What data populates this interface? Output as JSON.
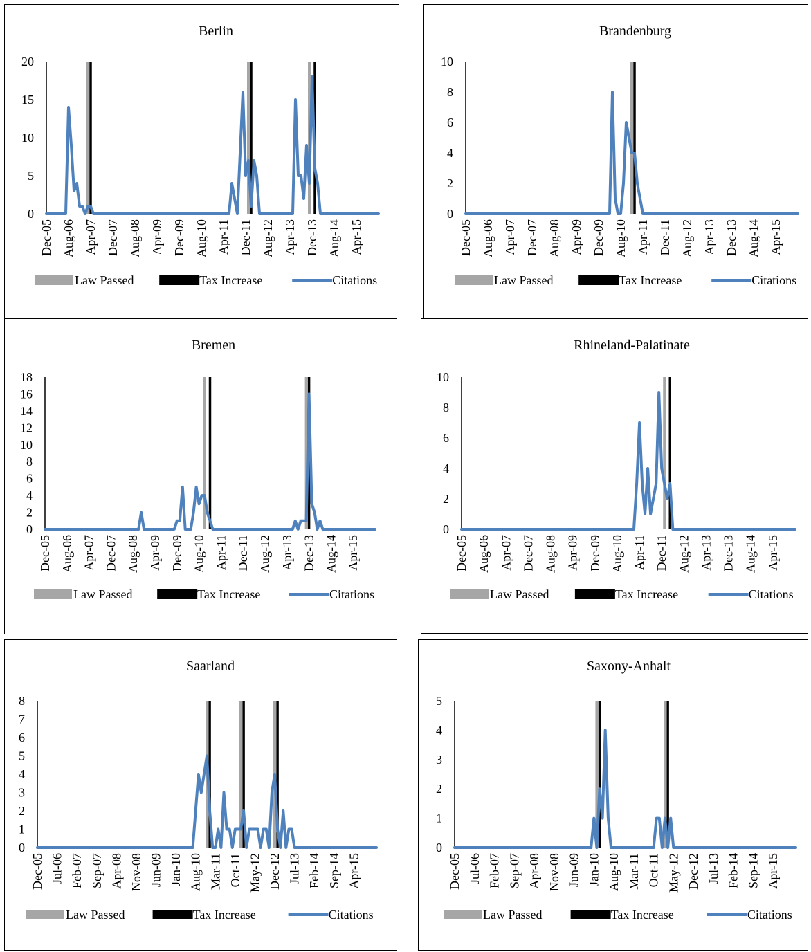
{
  "legend": {
    "law_label": "Law Passed",
    "tax_label": "Tax Increase",
    "citations_label": "Citations"
  },
  "colors": {
    "law": "#a6a6a6",
    "tax": "#000000",
    "citations": "#4f81bd"
  },
  "chart_data": [
    {
      "type": "line",
      "title": "Berlin",
      "x_unit": "month",
      "x_range": [
        "Dec-05",
        "Dec-15"
      ],
      "x_ticks": [
        "Dec-05",
        "Aug-06",
        "Apr-07",
        "Dec-07",
        "Aug-08",
        "Apr-09",
        "Dec-09",
        "Aug-10",
        "Apr-11",
        "Dec-11",
        "Aug-12",
        "Apr-13",
        "Dec-13",
        "Aug-14",
        "Apr-15"
      ],
      "y_ticks": [
        0,
        5,
        10,
        15,
        20
      ],
      "ylim": [
        0,
        20
      ],
      "law_passed": [
        "Mar-07",
        "Jan-12",
        "Nov-13"
      ],
      "tax_increase": [
        "Apr-07",
        "Feb-12",
        "Jan-14"
      ],
      "series": [
        {
          "name": "Citations",
          "points": [
            [
              "Dec-05",
              0
            ],
            [
              "Jul-06",
              0
            ],
            [
              "Aug-06",
              14
            ],
            [
              "Sep-06",
              9
            ],
            [
              "Oct-06",
              3
            ],
            [
              "Nov-06",
              4
            ],
            [
              "Dec-06",
              1
            ],
            [
              "Jan-07",
              1
            ],
            [
              "Feb-07",
              0
            ],
            [
              "Mar-07",
              1
            ],
            [
              "Apr-07",
              1
            ],
            [
              "May-07",
              0
            ],
            [
              "Jun-11",
              0
            ],
            [
              "Jul-11",
              4
            ],
            [
              "Aug-11",
              2
            ],
            [
              "Sep-11",
              0
            ],
            [
              "Oct-11",
              8
            ],
            [
              "Nov-11",
              16
            ],
            [
              "Dec-11",
              5
            ],
            [
              "Jan-12",
              7
            ],
            [
              "Feb-12",
              1
            ],
            [
              "Mar-12",
              7
            ],
            [
              "Apr-12",
              5
            ],
            [
              "May-12",
              0
            ],
            [
              "May-13",
              0
            ],
            [
              "Jun-13",
              15
            ],
            [
              "Jul-13",
              5
            ],
            [
              "Aug-13",
              5
            ],
            [
              "Sep-13",
              2
            ],
            [
              "Oct-13",
              9
            ],
            [
              "Nov-13",
              4
            ],
            [
              "Dec-13",
              18
            ],
            [
              "Jan-14",
              6
            ],
            [
              "Feb-14",
              4
            ],
            [
              "Mar-14",
              0
            ],
            [
              "Dec-15",
              0
            ]
          ]
        }
      ]
    },
    {
      "type": "line",
      "title": "Brandenburg",
      "x_unit": "month",
      "x_range": [
        "Dec-05",
        "Dec-15"
      ],
      "x_ticks": [
        "Dec-05",
        "Aug-06",
        "Apr-07",
        "Dec-07",
        "Aug-08",
        "Apr-09",
        "Dec-09",
        "Aug-10",
        "Apr-11",
        "Dec-11",
        "Aug-12",
        "Apr-13",
        "Dec-13",
        "Aug-14",
        "Apr-15"
      ],
      "y_ticks": [
        0,
        2,
        4,
        6,
        8,
        10
      ],
      "ylim": [
        0,
        10
      ],
      "law_passed": [
        "Dec-10"
      ],
      "tax_increase": [
        "Jan-11"
      ],
      "series": [
        {
          "name": "Citations",
          "points": [
            [
              "Dec-05",
              0
            ],
            [
              "Apr-10",
              0
            ],
            [
              "May-10",
              8
            ],
            [
              "Jun-10",
              1
            ],
            [
              "Jul-10",
              0
            ],
            [
              "Aug-10",
              0
            ],
            [
              "Sep-10",
              2
            ],
            [
              "Oct-10",
              6
            ],
            [
              "Nov-10",
              5
            ],
            [
              "Dec-10",
              4
            ],
            [
              "Jan-11",
              4
            ],
            [
              "Feb-11",
              2
            ],
            [
              "Mar-11",
              1
            ],
            [
              "Apr-11",
              0
            ],
            [
              "Dec-15",
              0
            ]
          ]
        }
      ]
    },
    {
      "type": "line",
      "title": "Bremen",
      "x_unit": "month",
      "x_range": [
        "Dec-05",
        "Dec-15"
      ],
      "x_ticks": [
        "Dec-05",
        "Aug-06",
        "Apr-07",
        "Dec-07",
        "Aug-08",
        "Apr-09",
        "Dec-09",
        "Aug-10",
        "Apr-11",
        "Dec-11",
        "Aug-12",
        "Apr-13",
        "Dec-13",
        "Aug-14",
        "Apr-15"
      ],
      "y_ticks": [
        0,
        2,
        4,
        6,
        8,
        10,
        12,
        14,
        16,
        18
      ],
      "ylim": [
        0,
        18
      ],
      "law_passed": [
        "Oct-10",
        "Nov-13"
      ],
      "tax_increase": [
        "Dec-10",
        "Dec-13"
      ],
      "series": [
        {
          "name": "Citations",
          "points": [
            [
              "Dec-05",
              0
            ],
            [
              "Oct-08",
              0
            ],
            [
              "Nov-08",
              2
            ],
            [
              "Dec-08",
              0
            ],
            [
              "Nov-09",
              0
            ],
            [
              "Dec-09",
              1
            ],
            [
              "Jan-10",
              1
            ],
            [
              "Feb-10",
              5
            ],
            [
              "Mar-10",
              0
            ],
            [
              "May-10",
              0
            ],
            [
              "Jun-10",
              2
            ],
            [
              "Jul-10",
              5
            ],
            [
              "Aug-10",
              3
            ],
            [
              "Sep-10",
              4
            ],
            [
              "Oct-10",
              4
            ],
            [
              "Nov-10",
              2
            ],
            [
              "Dec-10",
              1
            ],
            [
              "Jan-11",
              0
            ],
            [
              "Jun-13",
              0
            ],
            [
              "Jul-13",
              1
            ],
            [
              "Aug-13",
              0
            ],
            [
              "Sep-13",
              1
            ],
            [
              "Oct-13",
              1
            ],
            [
              "Nov-13",
              1
            ],
            [
              "Dec-13",
              16
            ],
            [
              "Jan-14",
              3
            ],
            [
              "Feb-14",
              2
            ],
            [
              "Mar-14",
              0
            ],
            [
              "Apr-14",
              1
            ],
            [
              "May-14",
              0
            ],
            [
              "Dec-15",
              0
            ]
          ]
        }
      ]
    },
    {
      "type": "line",
      "title": "Rhineland-Palatinate",
      "x_unit": "month",
      "x_range": [
        "Dec-05",
        "Dec-15"
      ],
      "x_ticks": [
        "Dec-05",
        "Aug-06",
        "Apr-07",
        "Dec-07",
        "Aug-08",
        "Apr-09",
        "Dec-09",
        "Aug-10",
        "Apr-11",
        "Dec-11",
        "Aug-12",
        "Apr-13",
        "Dec-13",
        "Aug-14",
        "Apr-15"
      ],
      "y_ticks": [
        0,
        2,
        4,
        6,
        8,
        10
      ],
      "ylim": [
        0,
        10
      ],
      "law_passed": [
        "Jan-12"
      ],
      "tax_increase": [
        "Mar-12"
      ],
      "series": [
        {
          "name": "Citations",
          "points": [
            [
              "Dec-05",
              0
            ],
            [
              "Feb-11",
              0
            ],
            [
              "Mar-11",
              3
            ],
            [
              "Apr-11",
              7
            ],
            [
              "May-11",
              3
            ],
            [
              "Jun-11",
              1
            ],
            [
              "Jul-11",
              4
            ],
            [
              "Aug-11",
              1
            ],
            [
              "Sep-11",
              2
            ],
            [
              "Oct-11",
              3
            ],
            [
              "Nov-11",
              9
            ],
            [
              "Dec-11",
              4
            ],
            [
              "Jan-12",
              3
            ],
            [
              "Feb-12",
              2
            ],
            [
              "Mar-12",
              3
            ],
            [
              "Apr-12",
              0
            ],
            [
              "Dec-15",
              0
            ]
          ]
        }
      ]
    },
    {
      "type": "line",
      "title": "Saarland",
      "x_unit": "month",
      "x_range": [
        "Dec-05",
        "Dec-15"
      ],
      "x_ticks": [
        "Dec-05",
        "Jul-06",
        "Feb-07",
        "Sep-07",
        "Apr-08",
        "Nov-08",
        "Jun-09",
        "Jan-10",
        "Aug-10",
        "Mar-11",
        "Oct-11",
        "May-12",
        "Dec-12",
        "Jul-13",
        "Feb-14",
        "Sep-14",
        "Apr-15"
      ],
      "y_ticks": [
        0,
        1,
        2,
        3,
        4,
        5,
        6,
        7,
        8
      ],
      "ylim": [
        0,
        8
      ],
      "law_passed": [
        "Dec-10",
        "Dec-11",
        "Dec-12"
      ],
      "tax_increase": [
        "Jan-11",
        "Jan-12",
        "Jan-13"
      ],
      "series": [
        {
          "name": "Citations",
          "points": [
            [
              "Dec-05",
              0
            ],
            [
              "Jul-10",
              0
            ],
            [
              "Aug-10",
              2
            ],
            [
              "Sep-10",
              4
            ],
            [
              "Oct-10",
              3
            ],
            [
              "Nov-10",
              4
            ],
            [
              "Dec-10",
              5
            ],
            [
              "Jan-11",
              2
            ],
            [
              "Feb-11",
              0
            ],
            [
              "Mar-11",
              0
            ],
            [
              "Apr-11",
              1
            ],
            [
              "May-11",
              0
            ],
            [
              "Jun-11",
              3
            ],
            [
              "Jul-11",
              1
            ],
            [
              "Aug-11",
              1
            ],
            [
              "Sep-11",
              0
            ],
            [
              "Oct-11",
              1
            ],
            [
              "Nov-11",
              1
            ],
            [
              "Dec-11",
              1
            ],
            [
              "Jan-12",
              2
            ],
            [
              "Feb-12",
              0
            ],
            [
              "Mar-12",
              1
            ],
            [
              "Apr-12",
              1
            ],
            [
              "May-12",
              1
            ],
            [
              "Jun-12",
              1
            ],
            [
              "Jul-12",
              0
            ],
            [
              "Aug-12",
              1
            ],
            [
              "Sep-12",
              1
            ],
            [
              "Oct-12",
              0
            ],
            [
              "Nov-12",
              3
            ],
            [
              "Dec-12",
              4
            ],
            [
              "Jan-13",
              1
            ],
            [
              "Feb-13",
              0
            ],
            [
              "Mar-13",
              2
            ],
            [
              "Apr-13",
              0
            ],
            [
              "May-13",
              1
            ],
            [
              "Jun-13",
              1
            ],
            [
              "Jul-13",
              0
            ],
            [
              "Dec-15",
              0
            ]
          ]
        }
      ]
    },
    {
      "type": "line",
      "title": "Saxony-Anhalt",
      "x_unit": "month",
      "x_range": [
        "Dec-05",
        "Dec-15"
      ],
      "x_ticks": [
        "Dec-05",
        "Jul-06",
        "Feb-07",
        "Sep-07",
        "Apr-08",
        "Nov-08",
        "Jun-09",
        "Jan-10",
        "Aug-10",
        "Mar-11",
        "Oct-11",
        "May-12",
        "Dec-12",
        "Jul-13",
        "Feb-14",
        "Sep-14",
        "Apr-15"
      ],
      "y_ticks": [
        0,
        1,
        2,
        3,
        4,
        5
      ],
      "ylim": [
        0,
        5
      ],
      "law_passed": [
        "Feb-10",
        "Feb-12"
      ],
      "tax_increase": [
        "Mar-10",
        "Mar-12"
      ],
      "series": [
        {
          "name": "Citations",
          "points": [
            [
              "Dec-05",
              0
            ],
            [
              "Dec-09",
              0
            ],
            [
              "Jan-10",
              1
            ],
            [
              "Feb-10",
              0
            ],
            [
              "Mar-10",
              2
            ],
            [
              "Apr-10",
              1
            ],
            [
              "May-10",
              4
            ],
            [
              "Jun-10",
              1
            ],
            [
              "Jul-10",
              0
            ],
            [
              "Oct-11",
              0
            ],
            [
              "Nov-11",
              1
            ],
            [
              "Dec-11",
              1
            ],
            [
              "Jan-12",
              0
            ],
            [
              "Feb-12",
              1
            ],
            [
              "Mar-12",
              0
            ],
            [
              "Apr-12",
              1
            ],
            [
              "May-12",
              0
            ],
            [
              "Dec-15",
              0
            ]
          ]
        }
      ]
    }
  ]
}
